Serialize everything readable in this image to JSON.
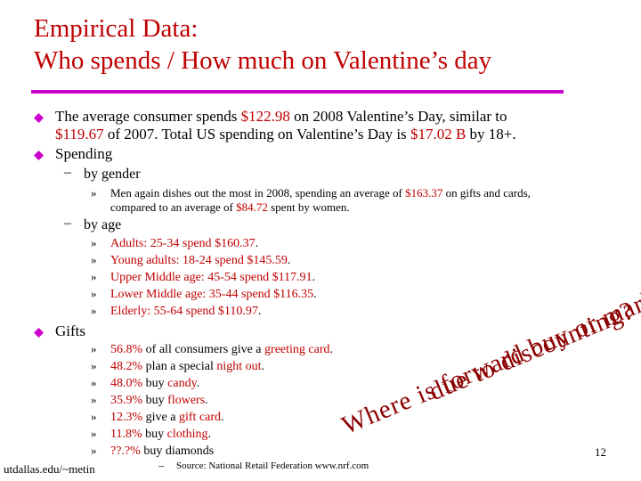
{
  "title": {
    "line1": "Empirical Data:",
    "line2": "Who spends / How much on Valentine’s day"
  },
  "colors": {
    "title": "#c00000",
    "rule": "#cc00cc",
    "bullet": "#cc00cc",
    "highlight": "#c00000",
    "overlay": "#8b0000"
  },
  "bullet1": {
    "a": "The average consumer spends ",
    "amount1": "$122.98",
    "b": " on 2008 Valentine’s Day, similar to",
    "amount2": "$119.67",
    "c": " of 2007. Total US spending on Valentine’s Day is ",
    "amount3": "$17.02 B",
    "d": " by 18+."
  },
  "spending": {
    "label": "Spending",
    "gender": {
      "label": "by gender",
      "line1_a": "Men again dishes out the most in 2008, spending an average of ",
      "line1_amount": "$163.37",
      "line1_b": " on gifts and cards,",
      "line2_a": "compared to an average of ",
      "line2_amount": "$84.72",
      "line2_b": " spent by women."
    },
    "age": {
      "label": "by age",
      "items": [
        {
          "group": "Adults: 25-34 spend ",
          "amount": "$160.37",
          "end": "."
        },
        {
          "group": "Young adults: 18-24 spend ",
          "amount": "$145.59",
          "end": "."
        },
        {
          "group": "Upper Middle age: 45-54 spend ",
          "amount": "$117.91",
          "end": "."
        },
        {
          "group": "Lower Middle age: 35-44 spend ",
          "amount": "$116.35",
          "end": "."
        },
        {
          "group": "Elderly: 55-64 spend ",
          "amount": "$110.97",
          "end": "."
        }
      ]
    }
  },
  "gifts": {
    "label": "Gifts",
    "items": [
      {
        "pct": "56.8%",
        "text": " of all consumers give a ",
        "hl": "greeting card",
        "end": "."
      },
      {
        "pct": "48.2%",
        "text": " plan a special ",
        "hl": "night out",
        "end": "."
      },
      {
        "pct": "48.0%",
        "text": " buy ",
        "hl": "candy",
        "end": "."
      },
      {
        "pct": "35.9%",
        "text": " buy ",
        "hl": "flowers",
        "end": "."
      },
      {
        "pct": "12.3%",
        "text": " give a ",
        "hl": "gift card",
        "end": "."
      },
      {
        "pct": "11.8%",
        "text": " buy ",
        "hl": "clothing",
        "end": "."
      },
      {
        "pct": "??.?%",
        "text": " buy diamonds",
        "hl": "",
        "end": ""
      }
    ]
  },
  "markers": {
    "dash": "–",
    "sub": "»"
  },
  "overlay": {
    "line1": "Where is forward buy or market growth",
    "line2": "due to discounting?"
  },
  "source": {
    "dash": "–",
    "text": "Source: National Retail Federation www.nrf.com"
  },
  "footer": {
    "url": "utdallas.edu/~metin",
    "page": "12"
  }
}
